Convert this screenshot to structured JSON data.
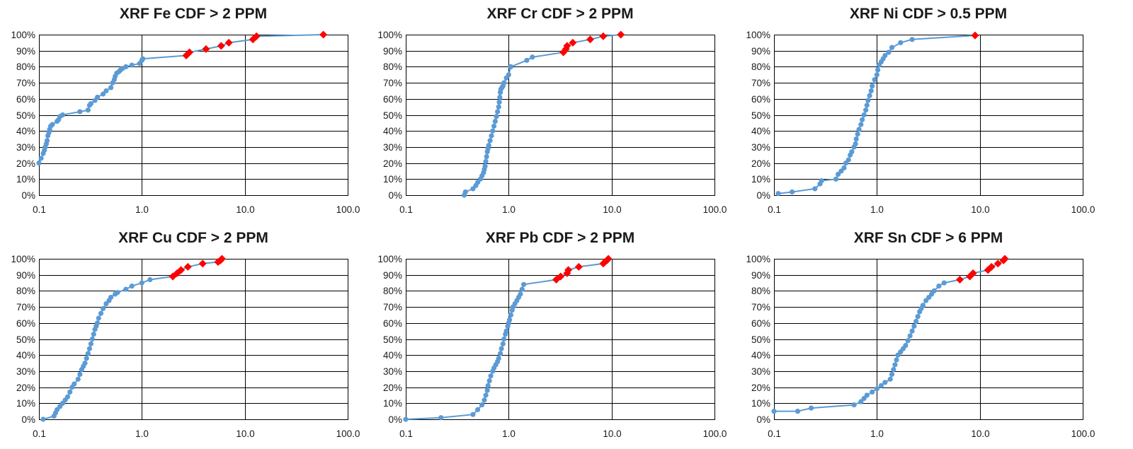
{
  "colors": {
    "line": "#5B9BD5",
    "threshold_marker": "#FF0000"
  },
  "chart_data": [
    {
      "type": "line",
      "title": "XRF Fe CDF > 2 PPM",
      "x_scale": "log",
      "xlim": [
        0.1,
        100
      ],
      "ylim": [
        0,
        1
      ],
      "x_ticks": [
        "0.1",
        "1.0",
        "10.0",
        "100.0"
      ],
      "y_ticks": [
        "0%",
        "10%",
        "20%",
        "30%",
        "40%",
        "50%",
        "60%",
        "70%",
        "80%",
        "90%",
        "100%"
      ],
      "grid": true,
      "legend": "none",
      "series": [
        {
          "marker": "circle",
          "x": [
            0.1,
            0.105,
            0.11,
            0.113,
            0.115,
            0.118,
            0.12,
            0.122,
            0.125,
            0.127,
            0.13,
            0.135,
            0.15,
            0.155,
            0.16,
            0.17,
            0.25,
            0.3,
            0.31,
            0.32,
            0.35,
            0.37,
            0.42,
            0.45,
            0.5,
            0.52,
            0.54,
            0.55,
            0.57,
            0.6,
            0.62,
            0.65,
            0.7,
            0.8,
            0.95,
            1.0,
            1.02
          ],
          "y": [
            0.2,
            0.23,
            0.26,
            0.28,
            0.3,
            0.32,
            0.34,
            0.37,
            0.39,
            0.41,
            0.43,
            0.44,
            0.46,
            0.47,
            0.49,
            0.5,
            0.52,
            0.53,
            0.56,
            0.57,
            0.59,
            0.61,
            0.63,
            0.65,
            0.67,
            0.7,
            0.72,
            0.74,
            0.76,
            0.77,
            0.78,
            0.79,
            0.8,
            0.81,
            0.82,
            0.84,
            0.85
          ]
        },
        {
          "marker": "diamond",
          "x": [
            2.7,
            2.9,
            4.2,
            5.9,
            7.0,
            12.0,
            13.0,
            58.0
          ],
          "y": [
            0.87,
            0.89,
            0.91,
            0.93,
            0.95,
            0.97,
            0.99,
            1.0
          ]
        }
      ]
    },
    {
      "type": "line",
      "title": "XRF Cr CDF > 2 PPM",
      "x_scale": "log",
      "xlim": [
        0.1,
        100
      ],
      "ylim": [
        0,
        1
      ],
      "x_ticks": [
        "0.1",
        "1.0",
        "10.0",
        "100.0"
      ],
      "y_ticks": [
        "0%",
        "10%",
        "20%",
        "30%",
        "40%",
        "50%",
        "60%",
        "70%",
        "80%",
        "90%",
        "100%"
      ],
      "grid": true,
      "legend": "none",
      "series": [
        {
          "marker": "circle",
          "x": [
            0.37,
            0.38,
            0.45,
            0.48,
            0.5,
            0.53,
            0.55,
            0.57,
            0.58,
            0.59,
            0.6,
            0.61,
            0.62,
            0.63,
            0.64,
            0.66,
            0.68,
            0.7,
            0.72,
            0.74,
            0.76,
            0.78,
            0.8,
            0.81,
            0.82,
            0.83,
            0.84,
            0.86,
            0.88,
            0.9,
            0.95,
            1.0,
            1.05,
            1.5,
            1.7
          ],
          "y": [
            0.0,
            0.02,
            0.04,
            0.06,
            0.08,
            0.1,
            0.12,
            0.14,
            0.16,
            0.18,
            0.21,
            0.24,
            0.27,
            0.29,
            0.31,
            0.34,
            0.37,
            0.4,
            0.43,
            0.46,
            0.49,
            0.52,
            0.55,
            0.58,
            0.61,
            0.64,
            0.66,
            0.67,
            0.68,
            0.7,
            0.73,
            0.75,
            0.8,
            0.84,
            0.86
          ]
        },
        {
          "marker": "diamond",
          "x": [
            3.4,
            3.6,
            3.7,
            4.2,
            6.2,
            8.3,
            12.3
          ],
          "y": [
            0.89,
            0.91,
            0.93,
            0.95,
            0.97,
            0.99,
            1.0
          ]
        }
      ]
    },
    {
      "type": "line",
      "title": "XRF Ni CDF > 0.5 PPM",
      "x_scale": "log",
      "xlim": [
        0.1,
        100
      ],
      "ylim": [
        0,
        1
      ],
      "x_ticks": [
        "0.1",
        "1.0",
        "10.0",
        "100.0"
      ],
      "y_ticks": [
        "0%",
        "10%",
        "20%",
        "30%",
        "40%",
        "50%",
        "60%",
        "70%",
        "80%",
        "90%",
        "100%"
      ],
      "grid": true,
      "legend": "none",
      "series": [
        {
          "marker": "circle",
          "x": [
            0.11,
            0.15,
            0.25,
            0.28,
            0.29,
            0.4,
            0.42,
            0.45,
            0.48,
            0.5,
            0.53,
            0.55,
            0.57,
            0.6,
            0.62,
            0.63,
            0.65,
            0.67,
            0.7,
            0.72,
            0.75,
            0.78,
            0.8,
            0.82,
            0.85,
            0.88,
            0.9,
            0.95,
            1.0,
            1.02,
            1.05,
            1.1,
            1.15,
            1.2,
            1.3,
            1.4,
            1.7,
            2.2
          ],
          "y": [
            0.01,
            0.02,
            0.04,
            0.07,
            0.09,
            0.1,
            0.13,
            0.15,
            0.17,
            0.2,
            0.22,
            0.25,
            0.27,
            0.3,
            0.32,
            0.35,
            0.38,
            0.41,
            0.44,
            0.47,
            0.5,
            0.53,
            0.56,
            0.59,
            0.62,
            0.65,
            0.68,
            0.72,
            0.75,
            0.78,
            0.81,
            0.83,
            0.85,
            0.87,
            0.89,
            0.92,
            0.95,
            0.97
          ]
        },
        {
          "marker": "diamond",
          "x": [
            9.0
          ],
          "y": [
            0.995
          ]
        }
      ]
    },
    {
      "type": "line",
      "title": "XRF Cu CDF > 2 PPM",
      "x_scale": "log",
      "xlim": [
        0.1,
        100
      ],
      "ylim": [
        0,
        1
      ],
      "x_ticks": [
        "0.1",
        "1.0",
        "10.0",
        "100.0"
      ],
      "y_ticks": [
        "0%",
        "10%",
        "20%",
        "30%",
        "40%",
        "50%",
        "60%",
        "70%",
        "80%",
        "90%",
        "100%"
      ],
      "grid": true,
      "legend": "none",
      "series": [
        {
          "marker": "circle",
          "x": [
            0.11,
            0.14,
            0.145,
            0.15,
            0.16,
            0.17,
            0.18,
            0.19,
            0.2,
            0.21,
            0.22,
            0.24,
            0.25,
            0.26,
            0.27,
            0.28,
            0.29,
            0.3,
            0.31,
            0.32,
            0.33,
            0.34,
            0.35,
            0.36,
            0.37,
            0.38,
            0.4,
            0.42,
            0.45,
            0.48,
            0.5,
            0.55,
            0.58,
            0.7,
            0.8,
            1.0,
            1.2
          ],
          "y": [
            0.0,
            0.02,
            0.04,
            0.06,
            0.08,
            0.1,
            0.12,
            0.14,
            0.17,
            0.2,
            0.22,
            0.25,
            0.28,
            0.31,
            0.33,
            0.35,
            0.38,
            0.41,
            0.44,
            0.47,
            0.5,
            0.53,
            0.56,
            0.58,
            0.6,
            0.63,
            0.66,
            0.69,
            0.72,
            0.74,
            0.76,
            0.78,
            0.79,
            0.81,
            0.83,
            0.85,
            0.87
          ]
        },
        {
          "marker": "diamond",
          "x": [
            2.0,
            2.2,
            2.4,
            2.8,
            3.9,
            5.5,
            5.8,
            6.0
          ],
          "y": [
            0.89,
            0.91,
            0.93,
            0.95,
            0.97,
            0.98,
            0.99,
            1.0
          ]
        }
      ]
    },
    {
      "type": "line",
      "title": "XRF Pb CDF > 2 PPM",
      "x_scale": "log",
      "xlim": [
        0.1,
        100
      ],
      "ylim": [
        0,
        1
      ],
      "x_ticks": [
        "0.1",
        "1.0",
        "10.0",
        "100.0"
      ],
      "y_ticks": [
        "0%",
        "10%",
        "20%",
        "30%",
        "40%",
        "50%",
        "60%",
        "70%",
        "80%",
        "90%",
        "100%"
      ],
      "grid": true,
      "legend": "none",
      "series": [
        {
          "marker": "circle",
          "x": [
            0.1,
            0.22,
            0.45,
            0.5,
            0.55,
            0.58,
            0.6,
            0.62,
            0.63,
            0.65,
            0.67,
            0.7,
            0.72,
            0.75,
            0.78,
            0.8,
            0.83,
            0.85,
            0.88,
            0.9,
            0.93,
            0.95,
            0.98,
            1.0,
            1.02,
            1.05,
            1.08,
            1.1,
            1.15,
            1.2,
            1.25,
            1.3,
            1.35,
            1.4
          ],
          "y": [
            0.0,
            0.01,
            0.03,
            0.06,
            0.09,
            0.12,
            0.15,
            0.18,
            0.21,
            0.24,
            0.27,
            0.3,
            0.32,
            0.34,
            0.36,
            0.38,
            0.41,
            0.44,
            0.47,
            0.5,
            0.53,
            0.55,
            0.58,
            0.6,
            0.62,
            0.65,
            0.68,
            0.7,
            0.72,
            0.74,
            0.76,
            0.78,
            0.81,
            0.84
          ]
        },
        {
          "marker": "diamond",
          "x": [
            2.9,
            3.2,
            3.7,
            3.8,
            4.8,
            8.3,
            8.6,
            9.0,
            9.3
          ],
          "y": [
            0.87,
            0.89,
            0.91,
            0.93,
            0.95,
            0.97,
            0.98,
            0.99,
            1.0
          ]
        }
      ]
    },
    {
      "type": "line",
      "title": "XRF Sn CDF > 6 PPM",
      "x_scale": "log",
      "xlim": [
        0.1,
        100
      ],
      "ylim": [
        0,
        1
      ],
      "x_ticks": [
        "0.1",
        "1.0",
        "10.0",
        "100.0"
      ],
      "y_ticks": [
        "0%",
        "10%",
        "20%",
        "30%",
        "40%",
        "50%",
        "60%",
        "70%",
        "80%",
        "90%",
        "100%"
      ],
      "grid": true,
      "legend": "none",
      "series": [
        {
          "marker": "circle",
          "x": [
            0.1,
            0.17,
            0.23,
            0.6,
            0.7,
            0.75,
            0.8,
            0.9,
            1.0,
            1.1,
            1.2,
            1.35,
            1.4,
            1.45,
            1.5,
            1.55,
            1.6,
            1.7,
            1.8,
            1.9,
            2.0,
            2.1,
            2.2,
            2.3,
            2.4,
            2.5,
            2.6,
            2.7,
            2.8,
            3.0,
            3.2,
            3.4,
            3.6,
            4.0,
            4.5
          ],
          "y": [
            0.05,
            0.05,
            0.07,
            0.09,
            0.11,
            0.13,
            0.15,
            0.17,
            0.19,
            0.21,
            0.23,
            0.25,
            0.28,
            0.31,
            0.34,
            0.37,
            0.4,
            0.42,
            0.44,
            0.46,
            0.49,
            0.52,
            0.55,
            0.58,
            0.61,
            0.64,
            0.67,
            0.69,
            0.71,
            0.74,
            0.76,
            0.78,
            0.8,
            0.83,
            0.85
          ]
        },
        {
          "marker": "diamond",
          "x": [
            6.4,
            8.0,
            8.6,
            12.0,
            13.0,
            15.0,
            17.0,
            17.5
          ],
          "y": [
            0.87,
            0.89,
            0.91,
            0.93,
            0.95,
            0.97,
            0.99,
            1.0
          ]
        }
      ]
    }
  ]
}
